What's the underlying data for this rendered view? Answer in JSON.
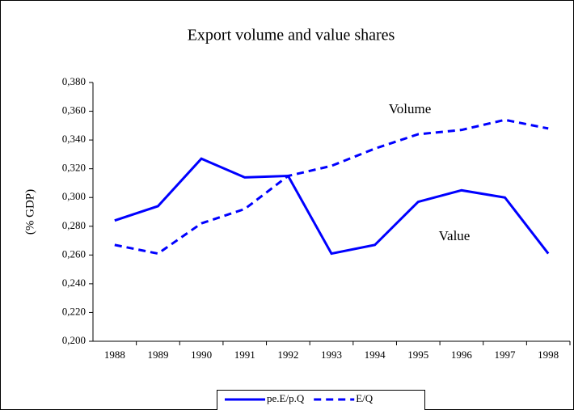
{
  "chart_data": {
    "type": "line",
    "title": "Export volume and value shares",
    "y_label": "(% GDP)",
    "categories": [
      "1988",
      "1989",
      "1990",
      "1991",
      "1992",
      "1993",
      "1994",
      "1995",
      "1996",
      "1997",
      "1998"
    ],
    "series": [
      {
        "name": "pe.E/p.Q",
        "color": "#0000ff",
        "dash": "solid",
        "values": [
          0.284,
          0.294,
          0.327,
          0.314,
          0.315,
          0.261,
          0.267,
          0.297,
          0.305,
          0.3,
          0.261
        ]
      },
      {
        "name": "E/Q",
        "color": "#0000ff",
        "dash": "dashed",
        "values": [
          0.267,
          0.261,
          0.282,
          0.292,
          0.315,
          0.322,
          0.334,
          0.344,
          0.347,
          0.354,
          0.348
        ]
      }
    ],
    "annotations": [
      "Volume",
      "Value"
    ],
    "ylim": [
      0.2,
      0.38
    ],
    "yticks": [
      {
        "value": 0.2,
        "label": "0,200"
      },
      {
        "value": 0.22,
        "label": "0,220"
      },
      {
        "value": 0.24,
        "label": "0,240"
      },
      {
        "value": 0.26,
        "label": "0,260"
      },
      {
        "value": 0.28,
        "label": "0,280"
      },
      {
        "value": 0.3,
        "label": "0,300"
      },
      {
        "value": 0.32,
        "label": "0,320"
      },
      {
        "value": 0.34,
        "label": "0,340"
      },
      {
        "value": 0.36,
        "label": "0,360"
      },
      {
        "value": 0.38,
        "label": "0,380"
      }
    ],
    "grid": false,
    "legend": "bottom"
  }
}
